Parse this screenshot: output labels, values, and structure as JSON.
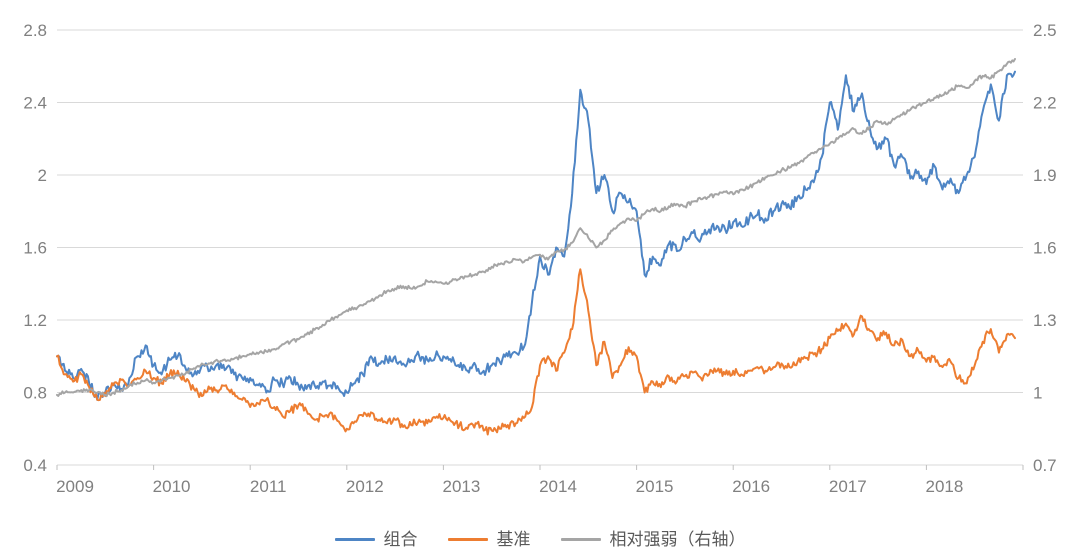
{
  "chart_data": {
    "type": "line",
    "title": "",
    "grid": true,
    "legend_position": "bottom",
    "x_start": 2009,
    "points_per_year": 12,
    "x_axis": {
      "labels": [
        "2009",
        "2010",
        "2011",
        "2012",
        "2013",
        "2014",
        "2015",
        "2016",
        "2017",
        "2018"
      ],
      "min": 2009,
      "max": 2019
    },
    "left_axis": {
      "labels": [
        "0.4",
        "0.8",
        "1.2",
        "1.6",
        "2",
        "2.4",
        "2.8"
      ],
      "ticks": [
        0.4,
        0.8,
        1.2,
        1.6,
        2.0,
        2.4,
        2.8
      ],
      "min": 0.4,
      "max": 2.8
    },
    "right_axis": {
      "labels": [
        "0.7",
        "1",
        "1.3",
        "1.6",
        "1.9",
        "2.2",
        "2.5"
      ],
      "ticks": [
        0.7,
        1.0,
        1.3,
        1.6,
        1.9,
        2.2,
        2.5
      ],
      "min": 0.7,
      "max": 2.5
    },
    "series": [
      {
        "name": "组合",
        "axis": "left",
        "color": "#4E85C5",
        "values": [
          1.0,
          0.92,
          0.88,
          0.93,
          0.85,
          0.76,
          0.8,
          0.85,
          0.82,
          0.88,
          1.0,
          1.06,
          0.95,
          0.9,
          0.98,
          1.0,
          0.93,
          0.9,
          0.95,
          0.92,
          0.96,
          0.93,
          0.9,
          0.88,
          0.88,
          0.84,
          0.8,
          0.87,
          0.85,
          0.88,
          0.84,
          0.82,
          0.84,
          0.86,
          0.84,
          0.82,
          0.8,
          0.85,
          0.9,
          1.0,
          0.96,
          0.98,
          1.0,
          0.96,
          0.98,
          1.0,
          0.98,
          1.0,
          1.0,
          0.97,
          0.94,
          0.92,
          0.95,
          0.92,
          0.95,
          0.97,
          1.0,
          1.02,
          1.05,
          1.3,
          1.55,
          1.45,
          1.6,
          1.55,
          1.9,
          2.47,
          2.3,
          1.9,
          2.0,
          1.8,
          1.9,
          1.85,
          1.8,
          1.45,
          1.55,
          1.5,
          1.62,
          1.58,
          1.65,
          1.68,
          1.65,
          1.7,
          1.72,
          1.7,
          1.74,
          1.72,
          1.76,
          1.78,
          1.76,
          1.8,
          1.84,
          1.82,
          1.88,
          1.92,
          1.96,
          2.1,
          2.4,
          2.25,
          2.55,
          2.35,
          2.45,
          2.25,
          2.15,
          2.2,
          2.05,
          2.1,
          1.98,
          2.02,
          1.95,
          2.05,
          1.92,
          1.98,
          1.9,
          2.0,
          2.1,
          2.35,
          2.5,
          2.3,
          2.55,
          2.57
        ]
      },
      {
        "name": "基准",
        "axis": "left",
        "color": "#ED7D31",
        "values": [
          1.0,
          0.9,
          0.86,
          0.9,
          0.83,
          0.76,
          0.78,
          0.84,
          0.87,
          0.84,
          0.88,
          0.92,
          0.88,
          0.85,
          0.9,
          0.92,
          0.86,
          0.82,
          0.78,
          0.82,
          0.8,
          0.84,
          0.8,
          0.76,
          0.72,
          0.74,
          0.76,
          0.72,
          0.67,
          0.7,
          0.73,
          0.7,
          0.65,
          0.67,
          0.69,
          0.64,
          0.6,
          0.64,
          0.67,
          0.69,
          0.65,
          0.63,
          0.65,
          0.61,
          0.62,
          0.65,
          0.63,
          0.66,
          0.66,
          0.64,
          0.62,
          0.6,
          0.63,
          0.59,
          0.59,
          0.6,
          0.62,
          0.63,
          0.66,
          0.72,
          0.95,
          1.0,
          0.92,
          1.02,
          1.15,
          1.48,
          1.25,
          0.95,
          1.08,
          0.88,
          0.95,
          1.05,
          1.0,
          0.8,
          0.86,
          0.83,
          0.89,
          0.86,
          0.89,
          0.91,
          0.88,
          0.9,
          0.92,
          0.9,
          0.92,
          0.9,
          0.92,
          0.94,
          0.92,
          0.94,
          0.96,
          0.94,
          0.97,
          0.99,
          1.01,
          1.04,
          1.1,
          1.14,
          1.18,
          1.12,
          1.22,
          1.14,
          1.1,
          1.13,
          1.06,
          1.09,
          1.0,
          1.03,
          0.97,
          1.0,
          0.94,
          0.97,
          0.88,
          0.85,
          0.95,
          1.08,
          1.15,
          1.02,
          1.12,
          1.1
        ]
      },
      {
        "name": "相对强弱（右轴）",
        "axis": "right",
        "color": "#A5A5A5",
        "values": [
          0.99,
          1.0,
          1.0,
          1.01,
          1.01,
          1.0,
          0.99,
          1.0,
          1.01,
          1.03,
          1.04,
          1.05,
          1.04,
          1.05,
          1.06,
          1.07,
          1.08,
          1.1,
          1.12,
          1.12,
          1.13,
          1.13,
          1.14,
          1.15,
          1.16,
          1.16,
          1.17,
          1.18,
          1.2,
          1.21,
          1.22,
          1.24,
          1.26,
          1.28,
          1.3,
          1.32,
          1.34,
          1.35,
          1.36,
          1.38,
          1.4,
          1.42,
          1.43,
          1.44,
          1.43,
          1.44,
          1.46,
          1.46,
          1.45,
          1.46,
          1.47,
          1.48,
          1.49,
          1.5,
          1.52,
          1.53,
          1.54,
          1.55,
          1.54,
          1.56,
          1.57,
          1.55,
          1.58,
          1.59,
          1.62,
          1.68,
          1.64,
          1.6,
          1.63,
          1.67,
          1.7,
          1.72,
          1.71,
          1.74,
          1.76,
          1.75,
          1.77,
          1.78,
          1.77,
          1.79,
          1.8,
          1.81,
          1.82,
          1.83,
          1.82,
          1.84,
          1.85,
          1.87,
          1.89,
          1.9,
          1.92,
          1.93,
          1.95,
          1.97,
          1.99,
          2.01,
          2.03,
          2.05,
          2.07,
          2.09,
          2.07,
          2.1,
          2.12,
          2.11,
          2.13,
          2.15,
          2.17,
          2.19,
          2.2,
          2.22,
          2.23,
          2.25,
          2.27,
          2.26,
          2.29,
          2.31,
          2.3,
          2.33,
          2.36,
          2.38
        ]
      }
    ]
  },
  "colors": {
    "background": "#FFFFFF",
    "grid": "#D9D9D9",
    "tick": "#BFBFBF",
    "axis_label": "#808080",
    "legend_text": "#595959"
  }
}
